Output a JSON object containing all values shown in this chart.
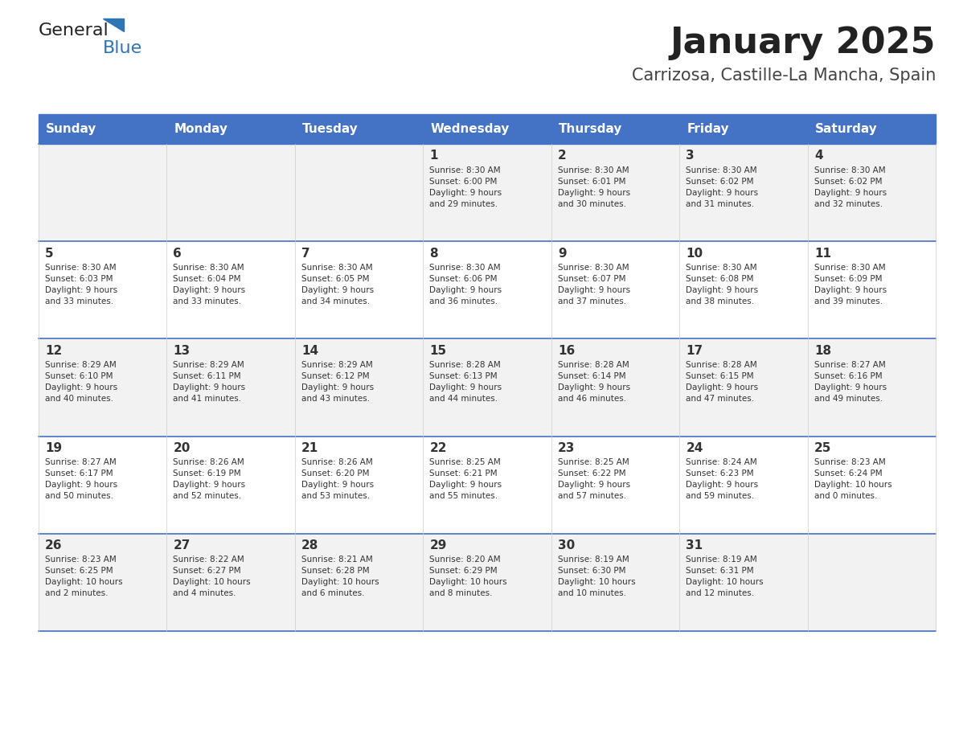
{
  "title": "January 2025",
  "subtitle": "Carrizosa, Castille-La Mancha, Spain",
  "days_of_week": [
    "Sunday",
    "Monday",
    "Tuesday",
    "Wednesday",
    "Thursday",
    "Friday",
    "Saturday"
  ],
  "header_bg": "#4472C4",
  "header_text": "#FFFFFF",
  "row_bg_odd": "#F2F2F2",
  "row_bg_even": "#FFFFFF",
  "day_num_color": "#333333",
  "cell_text_color": "#333333",
  "title_color": "#222222",
  "subtitle_color": "#444444",
  "logo_general_color": "#222222",
  "logo_blue_color": "#2E75B6",
  "divider_color": "#4472C4",
  "calendar_data": {
    "week1": [
      {
        "day": "",
        "info": ""
      },
      {
        "day": "",
        "info": ""
      },
      {
        "day": "",
        "info": ""
      },
      {
        "day": "1",
        "info": "Sunrise: 8:30 AM\nSunset: 6:00 PM\nDaylight: 9 hours\nand 29 minutes."
      },
      {
        "day": "2",
        "info": "Sunrise: 8:30 AM\nSunset: 6:01 PM\nDaylight: 9 hours\nand 30 minutes."
      },
      {
        "day": "3",
        "info": "Sunrise: 8:30 AM\nSunset: 6:02 PM\nDaylight: 9 hours\nand 31 minutes."
      },
      {
        "day": "4",
        "info": "Sunrise: 8:30 AM\nSunset: 6:02 PM\nDaylight: 9 hours\nand 32 minutes."
      }
    ],
    "week2": [
      {
        "day": "5",
        "info": "Sunrise: 8:30 AM\nSunset: 6:03 PM\nDaylight: 9 hours\nand 33 minutes."
      },
      {
        "day": "6",
        "info": "Sunrise: 8:30 AM\nSunset: 6:04 PM\nDaylight: 9 hours\nand 33 minutes."
      },
      {
        "day": "7",
        "info": "Sunrise: 8:30 AM\nSunset: 6:05 PM\nDaylight: 9 hours\nand 34 minutes."
      },
      {
        "day": "8",
        "info": "Sunrise: 8:30 AM\nSunset: 6:06 PM\nDaylight: 9 hours\nand 36 minutes."
      },
      {
        "day": "9",
        "info": "Sunrise: 8:30 AM\nSunset: 6:07 PM\nDaylight: 9 hours\nand 37 minutes."
      },
      {
        "day": "10",
        "info": "Sunrise: 8:30 AM\nSunset: 6:08 PM\nDaylight: 9 hours\nand 38 minutes."
      },
      {
        "day": "11",
        "info": "Sunrise: 8:30 AM\nSunset: 6:09 PM\nDaylight: 9 hours\nand 39 minutes."
      }
    ],
    "week3": [
      {
        "day": "12",
        "info": "Sunrise: 8:29 AM\nSunset: 6:10 PM\nDaylight: 9 hours\nand 40 minutes."
      },
      {
        "day": "13",
        "info": "Sunrise: 8:29 AM\nSunset: 6:11 PM\nDaylight: 9 hours\nand 41 minutes."
      },
      {
        "day": "14",
        "info": "Sunrise: 8:29 AM\nSunset: 6:12 PM\nDaylight: 9 hours\nand 43 minutes."
      },
      {
        "day": "15",
        "info": "Sunrise: 8:28 AM\nSunset: 6:13 PM\nDaylight: 9 hours\nand 44 minutes."
      },
      {
        "day": "16",
        "info": "Sunrise: 8:28 AM\nSunset: 6:14 PM\nDaylight: 9 hours\nand 46 minutes."
      },
      {
        "day": "17",
        "info": "Sunrise: 8:28 AM\nSunset: 6:15 PM\nDaylight: 9 hours\nand 47 minutes."
      },
      {
        "day": "18",
        "info": "Sunrise: 8:27 AM\nSunset: 6:16 PM\nDaylight: 9 hours\nand 49 minutes."
      }
    ],
    "week4": [
      {
        "day": "19",
        "info": "Sunrise: 8:27 AM\nSunset: 6:17 PM\nDaylight: 9 hours\nand 50 minutes."
      },
      {
        "day": "20",
        "info": "Sunrise: 8:26 AM\nSunset: 6:19 PM\nDaylight: 9 hours\nand 52 minutes."
      },
      {
        "day": "21",
        "info": "Sunrise: 8:26 AM\nSunset: 6:20 PM\nDaylight: 9 hours\nand 53 minutes."
      },
      {
        "day": "22",
        "info": "Sunrise: 8:25 AM\nSunset: 6:21 PM\nDaylight: 9 hours\nand 55 minutes."
      },
      {
        "day": "23",
        "info": "Sunrise: 8:25 AM\nSunset: 6:22 PM\nDaylight: 9 hours\nand 57 minutes."
      },
      {
        "day": "24",
        "info": "Sunrise: 8:24 AM\nSunset: 6:23 PM\nDaylight: 9 hours\nand 59 minutes."
      },
      {
        "day": "25",
        "info": "Sunrise: 8:23 AM\nSunset: 6:24 PM\nDaylight: 10 hours\nand 0 minutes."
      }
    ],
    "week5": [
      {
        "day": "26",
        "info": "Sunrise: 8:23 AM\nSunset: 6:25 PM\nDaylight: 10 hours\nand 2 minutes."
      },
      {
        "day": "27",
        "info": "Sunrise: 8:22 AM\nSunset: 6:27 PM\nDaylight: 10 hours\nand 4 minutes."
      },
      {
        "day": "28",
        "info": "Sunrise: 8:21 AM\nSunset: 6:28 PM\nDaylight: 10 hours\nand 6 minutes."
      },
      {
        "day": "29",
        "info": "Sunrise: 8:20 AM\nSunset: 6:29 PM\nDaylight: 10 hours\nand 8 minutes."
      },
      {
        "day": "30",
        "info": "Sunrise: 8:19 AM\nSunset: 6:30 PM\nDaylight: 10 hours\nand 10 minutes."
      },
      {
        "day": "31",
        "info": "Sunrise: 8:19 AM\nSunset: 6:31 PM\nDaylight: 10 hours\nand 12 minutes."
      },
      {
        "day": "",
        "info": ""
      }
    ]
  }
}
